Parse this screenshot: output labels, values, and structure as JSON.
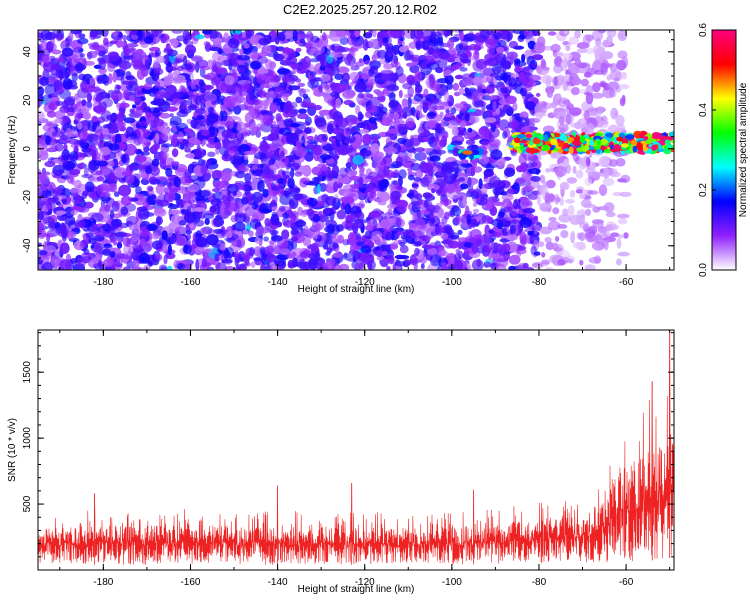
{
  "title": "C2E2.2025.257.20.12.R02",
  "chart_data": [
    {
      "type": "heatmap",
      "xlabel": "Height of straight line (km)",
      "ylabel": "Frequency (Hz)",
      "xlim": [
        -195,
        -49
      ],
      "ylim": [
        -50,
        49
      ],
      "xticks": [
        -180,
        -160,
        -140,
        -120,
        -100,
        -80,
        -60
      ],
      "yticks": [
        -40,
        -20,
        0,
        20,
        40
      ],
      "colorbar": {
        "label": "Normalized spectral amplitude",
        "range": [
          0.0,
          0.6
        ],
        "ticks": [
          0.0,
          0.2,
          0.4,
          0.6
        ],
        "tick_labels": [
          "0.0",
          "0.2",
          "0.4",
          "0.6"
        ],
        "stops": [
          "#ffffff",
          "#9020ff",
          "#0000ff",
          "#00ffff",
          "#00ff00",
          "#ffff00",
          "#ff0000",
          "#ff0080"
        ]
      },
      "features": [
        {
          "name": "broadband noise",
          "x_range": [
            -195,
            -80
          ],
          "freq_range": [
            -50,
            49
          ],
          "amplitude": 0.12
        },
        {
          "name": "fading noise",
          "x_range": [
            -80,
            -60
          ],
          "freq_range": [
            -50,
            49
          ],
          "amplitude": 0.05
        },
        {
          "name": "signal near 0 Hz",
          "x_range": [
            -98,
            -93
          ],
          "freq_range": [
            -3,
            -1
          ],
          "amplitude": 0.22
        },
        {
          "name": "signal near 0 Hz",
          "x_range": [
            -86,
            -49
          ],
          "freq_range": [
            -1,
            6
          ],
          "amplitude": 0.45
        }
      ]
    },
    {
      "type": "line",
      "xlabel": "Height of straight line (km)",
      "ylabel": "SNR (10 * v/v)",
      "xlim": [
        -195,
        -49
      ],
      "ylim": [
        0,
        1820
      ],
      "xticks": [
        -180,
        -160,
        -140,
        -120,
        -100,
        -80,
        -60
      ],
      "yticks": [
        500,
        1000,
        1500
      ],
      "series": [
        {
          "name": "SNR",
          "color": "#ee2222",
          "envelope_x": [
            -195,
            -180,
            -160,
            -140,
            -120,
            -100,
            -90,
            -80,
            -75,
            -70,
            -65,
            -62,
            -60,
            -57,
            -55,
            -52,
            -50,
            -49
          ],
          "envelope_low": [
            50,
            40,
            40,
            40,
            40,
            40,
            45,
            50,
            50,
            50,
            55,
            60,
            60,
            70,
            70,
            80,
            90,
            90
          ],
          "envelope_high": [
            430,
            460,
            470,
            450,
            440,
            450,
            470,
            530,
            560,
            600,
            760,
            1020,
            1100,
            1170,
            1300,
            1350,
            1500,
            1800
          ],
          "peaks": [
            {
              "x": -182,
              "y": 580
            },
            {
              "x": -140,
              "y": 640
            },
            {
              "x": -123,
              "y": 660
            },
            {
              "x": -95,
              "y": 610
            },
            {
              "x": -54,
              "y": 1430
            },
            {
              "x": -50,
              "y": 1820
            }
          ]
        }
      ]
    }
  ]
}
